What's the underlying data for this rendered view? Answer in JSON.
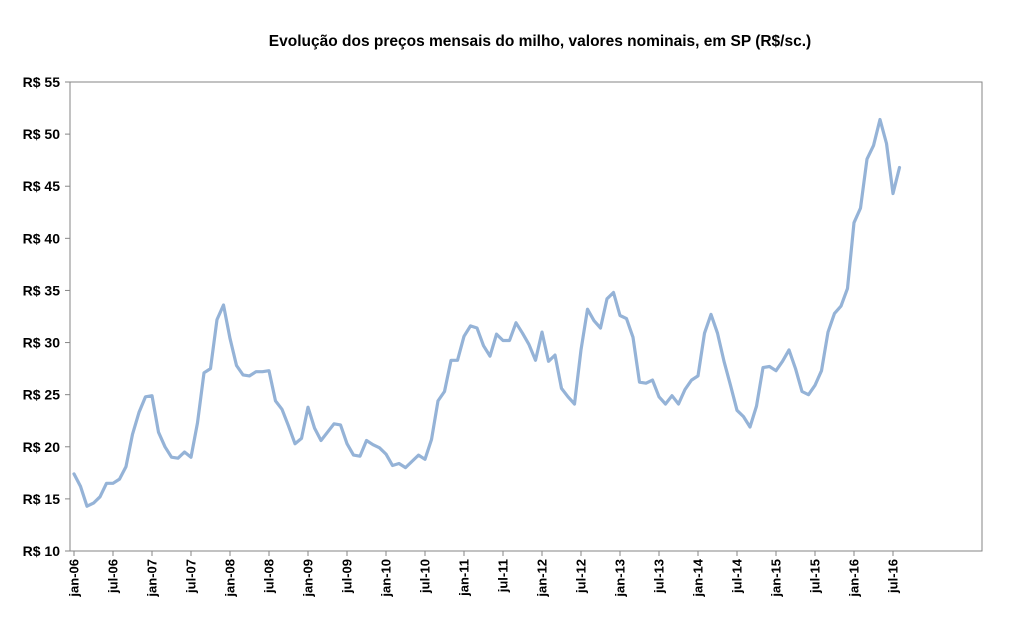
{
  "chart_data": {
    "type": "line",
    "title": "Evolução dos preços mensais do milho, valores nominais, em SP (R$/sc.)",
    "xlabel": "",
    "ylabel": "",
    "ylim": [
      10,
      55
    ],
    "y_ticks": [
      "R$ 10",
      "R$ 15",
      "R$ 20",
      "R$ 25",
      "R$ 30",
      "R$ 35",
      "R$ 40",
      "R$ 45",
      "R$ 50",
      "R$ 55"
    ],
    "y_tick_values": [
      10,
      15,
      20,
      25,
      30,
      35,
      40,
      45,
      50,
      55
    ],
    "x_ticks": [
      "jan-06",
      "jul-06",
      "jan-07",
      "jul-07",
      "jan-08",
      "jul-08",
      "jan-09",
      "jul-09",
      "jan-10",
      "jul-10",
      "jan-11",
      "jul-11",
      "jan-12",
      "jul-12",
      "jan-13",
      "jul-13",
      "jan-14",
      "jul-14",
      "jan-15",
      "jul-15",
      "jan-16",
      "jul-16"
    ],
    "grid": false,
    "legend": "none",
    "line_color": "#95b3d7",
    "series": [
      {
        "x_start": "jan-06",
        "x_end": "ago-16",
        "values": [
          17.4,
          16.2,
          14.3,
          14.6,
          15.2,
          16.5,
          16.5,
          16.9,
          18.1,
          21.2,
          23.3,
          24.8,
          24.9,
          21.4,
          20.0,
          19.0,
          18.9,
          19.5,
          19.0,
          22.3,
          27.1,
          27.5,
          32.2,
          33.6,
          30.4,
          27.8,
          26.9,
          26.8,
          27.2,
          27.2,
          27.3,
          24.4,
          23.6,
          22.0,
          20.3,
          20.8,
          23.8,
          21.8,
          20.6,
          21.4,
          22.2,
          22.1,
          20.3,
          19.2,
          19.1,
          20.6,
          20.2,
          19.9,
          19.3,
          18.2,
          18.4,
          18.0,
          18.6,
          19.2,
          18.8,
          20.7,
          24.4,
          25.3,
          28.3,
          28.3,
          30.6,
          31.6,
          31.4,
          29.7,
          28.7,
          30.8,
          30.2,
          30.2,
          31.9,
          30.9,
          29.8,
          28.3,
          31.0,
          28.2,
          28.8,
          25.6,
          24.8,
          24.1,
          29.3,
          33.2,
          32.1,
          31.4,
          34.2,
          34.8,
          32.6,
          32.3,
          30.5,
          26.2,
          26.1,
          26.4,
          24.8,
          24.1,
          24.9,
          24.1,
          25.5,
          26.4,
          26.8,
          30.9,
          32.7,
          30.9,
          28.2,
          25.9,
          23.5,
          22.9,
          21.9,
          23.9,
          27.6,
          27.7,
          27.3,
          28.2,
          29.3,
          27.5,
          25.3,
          25.0,
          25.9,
          27.3,
          31.0,
          32.8,
          33.5,
          35.2,
          41.5,
          42.9,
          47.6,
          48.9,
          51.4,
          49.1,
          44.3,
          46.8
        ]
      }
    ]
  }
}
